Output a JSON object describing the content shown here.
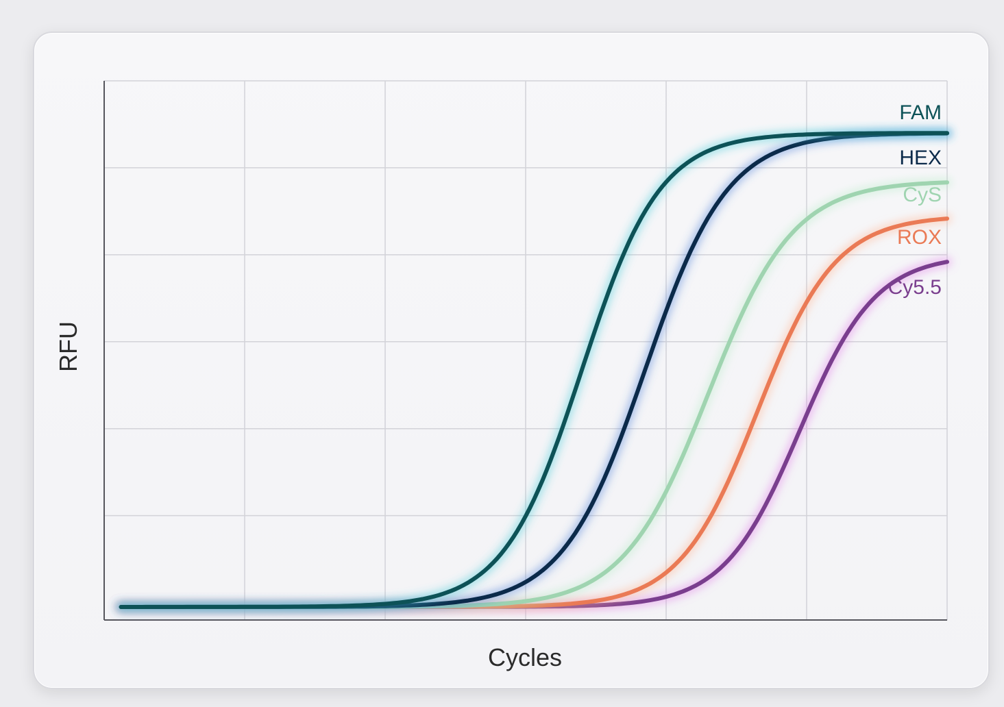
{
  "chart_data": {
    "type": "line",
    "title": "",
    "xlabel": "Cycles",
    "ylabel": "RFU",
    "xlim": [
      0,
      6
    ],
    "ylim": [
      0,
      6.2
    ],
    "grid": true,
    "legend": "inline labels at right end of each curve",
    "series": [
      {
        "name": "FAM",
        "color": "#0d5257",
        "glow": "#3ec9d6",
        "base": 0.15,
        "plateau": 5.6,
        "midpoint": 3.4,
        "steepness": 3.6
      },
      {
        "name": "HEX",
        "color": "#0b2a4a",
        "glow": "#4a7fd6",
        "base": 0.15,
        "plateau": 5.6,
        "midpoint": 3.85,
        "steepness": 3.4
      },
      {
        "name": "CyS",
        "color": "#9fd4b0",
        "glow": "#b8ecc8",
        "base": 0.15,
        "plateau": 5.05,
        "midpoint": 4.3,
        "steepness": 3.3
      },
      {
        "name": "ROX",
        "color": "#ea7a55",
        "glow": "#ffb28f",
        "base": 0.15,
        "plateau": 4.65,
        "midpoint": 4.65,
        "steepness": 3.6
      },
      {
        "name": "Cy5.5",
        "color": "#7a3e8e",
        "glow": "#e07ae6",
        "base": 0.15,
        "plateau": 4.2,
        "midpoint": 4.95,
        "steepness": 3.7
      }
    ]
  }
}
